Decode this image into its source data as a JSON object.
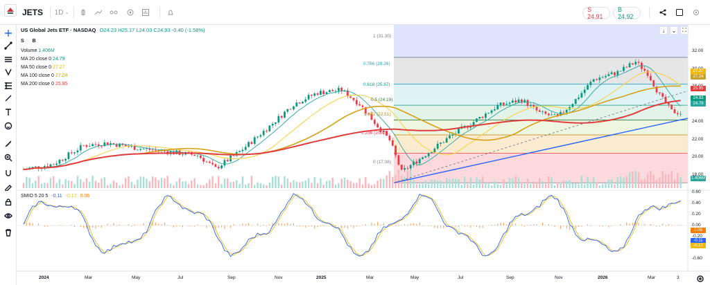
{
  "header": {
    "symbol": "JETS",
    "interval": "1D",
    "sell": "S 24.91",
    "buy": "B 24.92"
  },
  "legend": {
    "title": "US Global Jets ETF · NASDAQ",
    "ohlc": "O24.23 H25.17 L24.03 C24.93 -0.40 (-1.58%)",
    "s": "S",
    "b": "B",
    "volume_label": "Volume",
    "volume_value": "1.406M",
    "ma20_label": "MA 20 close 0",
    "ma20_value": "24.79",
    "ma50_label": "MA 50 close 0",
    "ma50_value": "27.27",
    "ma100_label": "MA 100 close 0",
    "ma100_value": "27.24",
    "ma200_label": "MA 200 close 0",
    "ma200_value": "25.95",
    "smio_label": "SMIO 5 20 5",
    "smio_v1": "-0.11",
    "smio_v2": "-0.17",
    "smio_v3": "0.06"
  },
  "fib": {
    "l1": "1 (31.30)",
    "l786": "0.786 (28.26)",
    "l618": "0.618 (25.87)",
    "l5": "0.5 (24.19)",
    "l382": "0.382 (22.51)",
    "l236": "0.236 (20.43)",
    "l0": "0 (17.08)"
  },
  "price_axis": [
    "32.00",
    "30.00",
    "28.00",
    "26.00",
    "24.00",
    "22.00",
    "20.00",
    "18.00"
  ],
  "price_tags": {
    "ma50": "27.27",
    "ma100": "27.24",
    "ma200": "25.95",
    "close": "24.93",
    "ma20": "24.79",
    "volume": "1.406M",
    "smio3": "0.06",
    "smio1": "-0.11",
    "smio2": "-0.17"
  },
  "osc_axis": [
    "0.60",
    "0.40",
    "0.20",
    "0.00",
    "-0.20",
    "-0.40",
    "-0.60"
  ],
  "time_axis": [
    "2024",
    "Mar",
    "May",
    "Jul",
    "Sep",
    "Nov",
    "2025",
    "Mar",
    "May",
    "Jul",
    "Sep",
    "Nov",
    "2026",
    "Mar",
    "3"
  ],
  "colors": {
    "ma20": "#089981",
    "ma50": "#f7c948",
    "ma100": "#c9a227",
    "ma200": "#e03c3c",
    "trend": "#2962ff",
    "up": "#089981",
    "down": "#f23645"
  }
}
